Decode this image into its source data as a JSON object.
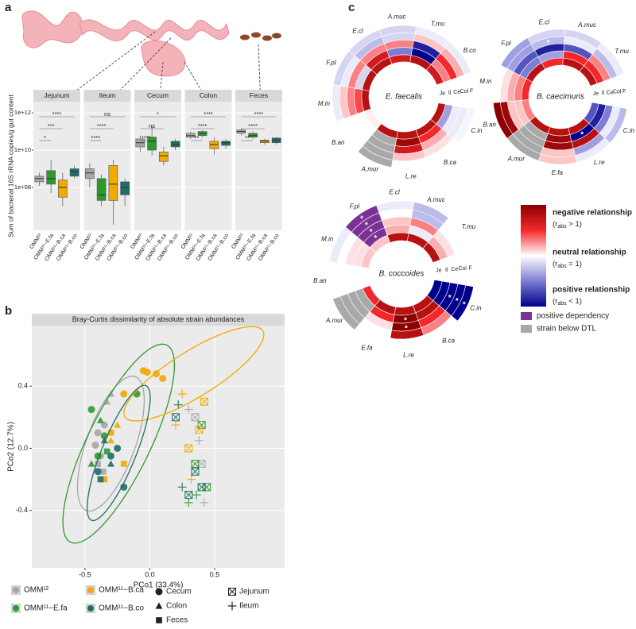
{
  "chart_data": [
    {
      "type": "box",
      "label": "a",
      "ylabel": "Sum of bacterial 16S rRNA copies/g gut content",
      "log": true,
      "ylim": [
        500000,
        4000000000000
      ],
      "yticks": [
        {
          "value": 100000000,
          "label": "1e+08"
        },
        {
          "value": 10000000000,
          "label": "1e+10"
        },
        {
          "value": 1000000000000,
          "label": "1e+12"
        }
      ],
      "grid": true,
      "groups": [
        "OMM¹²",
        "OMM¹¹−E.fa",
        "OMM¹¹−B.ca",
        "OMM¹¹−B.co"
      ],
      "colors": [
        "#a6a6a6",
        "#2e9a2e",
        "#f2a900",
        "#1e6d66"
      ],
      "facets": [
        {
          "name": "Jejunum",
          "significance": [
            "****",
            "***",
            "*"
          ],
          "boxes": [
            {
              "min": 120000000,
              "q1": 200000000,
              "median": 300000000,
              "q3": 400000000,
              "max": 600000000
            },
            {
              "min": 50000000,
              "q1": 150000000,
              "median": 300000000,
              "q3": 800000000,
              "max": 3000000000
            },
            {
              "min": 10000000,
              "q1": 30000000,
              "median": 100000000,
              "q3": 250000000,
              "max": 600000000
            },
            {
              "min": 300000000,
              "q1": 400000000,
              "median": 700000000,
              "q3": 1000000000,
              "max": 1500000000
            }
          ]
        },
        {
          "name": "Ileum",
          "significance": [
            "ns",
            "****",
            "****"
          ],
          "boxes": [
            {
              "min": 100000000,
              "q1": 300000000,
              "median": 600000000,
              "q3": 1000000000,
              "max": 2000000000
            },
            {
              "min": 10000000,
              "q1": 20000000,
              "median": 40000000,
              "q3": 300000000,
              "max": 500000000
            },
            {
              "min": 1000000,
              "q1": 20000000,
              "median": 150000000,
              "q3": 1500000000,
              "max": 3000000000
            },
            {
              "min": 10000000,
              "q1": 40000000,
              "median": 100000000,
              "q3": 200000000,
              "max": 300000000
            }
          ]
        },
        {
          "name": "Cecum",
          "significance": [
            "*",
            "ns",
            "****"
          ],
          "boxes": [
            {
              "min": 8000000000,
              "q1": 15000000000,
              "median": 25000000000,
              "q3": 40000000000,
              "max": 60000000000
            },
            {
              "min": 5000000000,
              "q1": 10000000000,
              "median": 30000000000,
              "q3": 50000000000,
              "max": 200000000000
            },
            {
              "min": 1500000000,
              "q1": 2500000000,
              "median": 5000000000,
              "q3": 8000000000,
              "max": 15000000000
            },
            {
              "min": 10000000000,
              "q1": 15000000000,
              "median": 20000000000,
              "q3": 30000000000,
              "max": 40000000000
            }
          ]
        },
        {
          "name": "Colon",
          "significance": [
            "****",
            "****",
            "**"
          ],
          "boxes": [
            {
              "min": 40000000000,
              "q1": 50000000000,
              "median": 60000000000,
              "q3": 80000000000,
              "max": 100000000000
            },
            {
              "min": 50000000000,
              "q1": 60000000000,
              "median": 80000000000,
              "q3": 100000000000,
              "max": 120000000000
            },
            {
              "min": 6000000000,
              "q1": 12000000000,
              "median": 20000000000,
              "q3": 30000000000,
              "max": 50000000000
            },
            {
              "min": 12000000000,
              "q1": 18000000000,
              "median": 25000000000,
              "q3": 30000000000,
              "max": 40000000000
            }
          ]
        },
        {
          "name": "Feces",
          "significance": [
            "****",
            "****",
            "**"
          ],
          "boxes": [
            {
              "min": 60000000000,
              "q1": 80000000000,
              "median": 100000000000,
              "q3": 120000000000,
              "max": 150000000000
            },
            {
              "min": 40000000000,
              "q1": 50000000000,
              "median": 60000000000,
              "q3": 80000000000,
              "max": 100000000000
            },
            {
              "min": 20000000000,
              "q1": 25000000000,
              "median": 30000000000,
              "q3": 35000000000,
              "max": 40000000000
            },
            {
              "min": 20000000000,
              "q1": 25000000000,
              "median": 35000000000,
              "q3": 45000000000,
              "max": 50000000000
            }
          ]
        }
      ]
    },
    {
      "type": "scatter",
      "label": "b",
      "title": "Bray-Curtis dissimilarity of absolute strain abundances",
      "xlabel": "PCo1 (33.4%)",
      "ylabel": "PCo2 (12.7%)",
      "xlim": [
        -0.91,
        1.04
      ],
      "ylim": [
        -0.77,
        0.79
      ],
      "xticks": [
        -0.5,
        {
          "value": 0,
          "label": "0.0"
        },
        0.5
      ],
      "yticks": [
        -0.4,
        {
          "value": 0,
          "label": "0.0"
        },
        0.4
      ],
      "grid": true,
      "sites": [
        {
          "name": "Cecum",
          "shape": "circle"
        },
        {
          "name": "Colon",
          "shape": "triangle"
        },
        {
          "name": "Feces",
          "shape": "square"
        },
        {
          "name": "Jejunum",
          "shape": "square-x"
        },
        {
          "name": "Ileum",
          "shape": "plus"
        }
      ],
      "series": [
        {
          "name": "OMM¹²",
          "color": "#a6a6a6",
          "x": [
            -0.4,
            -0.42,
            -0.38,
            -0.35,
            -0.33,
            -0.3,
            -0.4,
            -0.36,
            0.4,
            0.35,
            0.3,
            0.42,
            0.38
          ],
          "y": [
            0.1,
            0.02,
            -0.05,
            0.15,
            0.3,
            0.35,
            -0.1,
            -0.15,
            -0.1,
            0.2,
            0.25,
            -0.35,
            0.05
          ],
          "site": [
            "Cecum",
            "Cecum",
            "Cecum",
            "Cecum",
            "Colon",
            "Colon",
            "Feces",
            "Feces",
            "Jejunum",
            "Jejunum",
            "Ileum",
            "Ileum",
            "Ileum"
          ],
          "ellipse": {
            "cx": -0.3,
            "cy": 0.03,
            "rx": 0.5,
            "ry": 0.17,
            "angle": 70
          }
        },
        {
          "name": "OMM¹¹−E.fa",
          "color": "#2e9a2e",
          "x": [
            -0.45,
            -0.35,
            -0.1,
            -0.4,
            -0.38,
            -0.45,
            -0.33,
            0.4,
            0.44,
            0.35,
            0.3,
            0.36
          ],
          "y": [
            0.25,
            0.08,
            0.35,
            -0.05,
            0.18,
            -0.1,
            -0.02,
            0.15,
            -0.25,
            -0.1,
            -0.35,
            -0.3
          ],
          "site": [
            "Cecum",
            "Cecum",
            "Cecum",
            "Cecum",
            "Colon",
            "Colon",
            "Feces",
            "Jejunum",
            "Jejunum",
            "Jejunum",
            "Ileum",
            "Ileum"
          ],
          "ellipse": {
            "cx": -0.24,
            "cy": 0.03,
            "rx": 0.77,
            "ry": 0.22,
            "angle": 64
          }
        },
        {
          "name": "OMM¹¹−B.ca",
          "color": "#f2a900",
          "x": [
            -0.05,
            -0.02,
            0.05,
            0.1,
            -0.2,
            -0.25,
            -0.3,
            -0.3,
            -0.2,
            -0.35,
            0.38,
            0.3,
            0.42,
            0.25,
            0.2,
            0.32
          ],
          "y": [
            0.5,
            0.49,
            0.48,
            0.45,
            0.35,
            0.15,
            0.05,
            0.1,
            -0.1,
            -0.2,
            0.12,
            0.0,
            0.3,
            0.35,
            0.15,
            -0.2
          ],
          "site": [
            "Cecum",
            "Cecum",
            "Cecum",
            "Cecum",
            "Cecum",
            "Colon",
            "Colon",
            "Feces",
            "Feces",
            "Feces",
            "Jejunum",
            "Jejunum",
            "Jejunum",
            "Ileum",
            "Ileum",
            "Ileum"
          ],
          "ellipse": {
            "cx": 0.34,
            "cy": 0.48,
            "rx": 0.57,
            "ry": 0.16,
            "angle": 32
          }
        },
        {
          "name": "OMM¹¹−B.co",
          "color": "#1e6d66",
          "x": [
            -0.3,
            -0.25,
            -0.4,
            -0.2,
            -0.3,
            -0.35,
            -0.38,
            0.2,
            0.35,
            0.3,
            0.4,
            0.22,
            0.25
          ],
          "y": [
            -0.05,
            0.0,
            -0.15,
            -0.25,
            -0.1,
            0.05,
            -0.2,
            0.2,
            -0.15,
            -0.3,
            -0.25,
            0.28,
            -0.25
          ],
          "site": [
            "Cecum",
            "Cecum",
            "Cecum",
            "Cecum",
            "Colon",
            "Colon",
            "Feces",
            "Jejunum",
            "Jejunum",
            "Jejunum",
            "Jejunum",
            "Ileum",
            "Ileum"
          ],
          "ellipse": {
            "cx": -0.24,
            "cy": -0.03,
            "rx": 0.51,
            "ry": 0.12,
            "angle": 68
          }
        }
      ]
    },
    {
      "type": "radial-heatmap",
      "label": "c",
      "rings": [
        "Je",
        "Il",
        "Ce",
        "Col",
        "F"
      ],
      "clim": [
        0.25,
        4
      ],
      "star_label": "*",
      "panels": [
        {
          "title": "E. faecalis",
          "strains": [
            "C.in",
            "B.ca",
            "L.re",
            "A.mur",
            "B.an",
            "M.in",
            "F.pl",
            "E.cl",
            "A.muc",
            "T.mu",
            "B.co"
          ],
          "values": [
            [
              3,
              0.6,
              0.9,
              0.9,
              0.95
            ],
            [
              3,
              2,
              1.3,
              1.1,
              1
            ],
            [
              3,
              3.5,
              2.5,
              1.2,
              1
            ],
            [
              3,
              null,
              null,
              null,
              null
            ],
            [
              1.05,
              1,
              1,
              1,
              1
            ],
            [
              3,
              1.8,
              1.5,
              1.2,
              0.9
            ],
            [
              3,
              0.8,
              1.5,
              0.9,
              0.8
            ],
            [
              3,
              2.5,
              1.5,
              0.7,
              0.8
            ],
            [
              2.5,
              0.5,
              1.5,
              0.8,
              0.8
            ],
            [
              3,
              0.2,
              0.3,
              1.2,
              0.9
            ],
            [
              2.5,
              1.5,
              2,
              1.3,
              0.9
            ]
          ],
          "stars": [],
          "dependency": []
        },
        {
          "title": "B. caecimuris",
          "strains": [
            "C.in",
            "L.re",
            "E.fa",
            "A.mur",
            "B.an",
            "M.in",
            "F.pl",
            "E.cl",
            "A.muc",
            "T.mu"
          ],
          "values": [
            [
              0.4,
              0.3,
              0.5,
              0.9,
              0.7
            ],
            [
              3,
              0.2,
              3,
              0.6,
              0.9
            ],
            [
              3,
              3.5,
              3.5,
              1.2,
              1.2
            ],
            [
              3,
              null,
              null,
              null,
              null
            ],
            [
              1.5,
              1.2,
              1.2,
              3.5,
              4
            ],
            [
              2,
              1.5,
              1.3,
              1.1,
              1
            ],
            [
              3,
              0.5,
              0.4,
              0.6,
              0.6
            ],
            [
              2,
              0.6,
              0.3,
              0.7,
              0.8
            ],
            [
              3,
              2,
              0.4,
              0.9,
              0.8
            ],
            [
              3,
              2,
              1.5,
              0.7,
              0.9
            ]
          ],
          "stars": [
            [
              1,
              1
            ],
            [
              7,
              3
            ]
          ],
          "dependency": []
        },
        {
          "title": "B. coccoides",
          "strains": [
            "C.in",
            "B.ca",
            "L.re",
            "E.fa",
            "A.mur",
            "B.an",
            "M.in",
            "F.pl",
            "E.cl",
            "A.muc",
            "T.mu"
          ],
          "values": [
            [
              0.15,
              0.15,
              0.15,
              0.15,
              0.15
            ],
            [
              3,
              3,
              2,
              1.5,
              1
            ],
            [
              3,
              4,
              4,
              3,
              1
            ],
            [
              3,
              2,
              1.1,
              1,
              1
            ],
            [
              2,
              null,
              null,
              null,
              null
            ],
            [
              1,
              1,
              1,
              1,
              1
            ],
            [
              1.2,
              1.1,
              1.1,
              1,
              0.9
            ],
            [
              1.2,
              0.3,
              0.3,
              0.3,
              0.3
            ],
            [
              3,
              1.3,
              1.2,
              1,
              0.9
            ],
            [
              3,
              0.9,
              1.5,
              0.7,
              0.7
            ],
            [
              3,
              1.3,
              1.1,
              1,
              1
            ]
          ],
          "stars": [
            [
              0,
              2
            ],
            [
              0,
              3
            ],
            [
              0,
              4
            ],
            [
              2,
              1
            ],
            [
              2,
              2
            ],
            [
              7,
              1
            ],
            [
              7,
              2
            ],
            [
              7,
              3
            ],
            [
              7,
              4
            ]
          ],
          "dependency": [
            [
              7,
              1
            ],
            [
              7,
              2
            ],
            [
              7,
              3
            ],
            [
              7,
              4
            ]
          ]
        }
      ],
      "legend": {
        "scale": [
          {
            "label": "negative relationship",
            "pre": "(r",
            "sub": "abs",
            "post": " > 1)"
          },
          {
            "label": "neutral relationship",
            "pre": "(r",
            "sub": "abs",
            "post": " = 1)"
          },
          {
            "label": "positive relationship",
            "pre": "(r",
            "sub": "abs",
            "post": " < 1)"
          }
        ],
        "dependency": {
          "label": "positive dependency",
          "color": "#7b3294"
        },
        "below_dtl": {
          "label": "strain below DTL",
          "color": "#a9a9a9"
        }
      }
    }
  ]
}
